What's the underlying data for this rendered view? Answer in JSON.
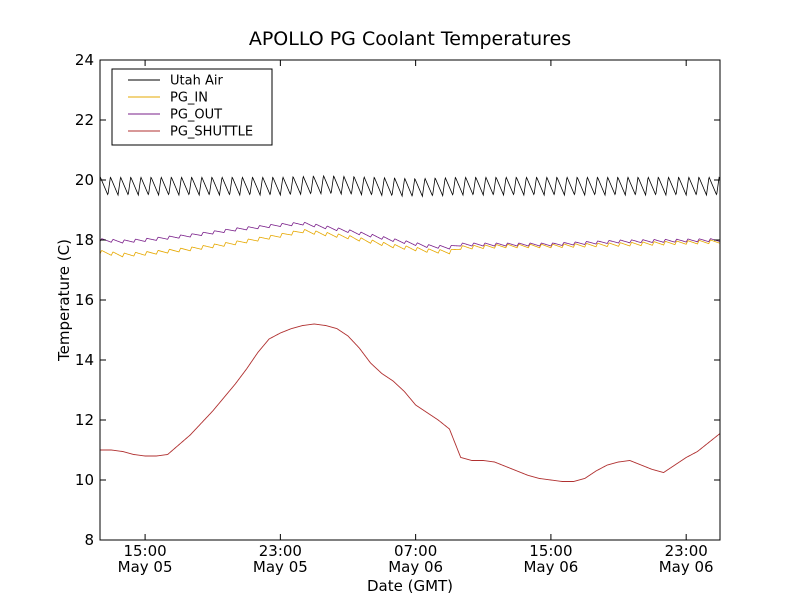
{
  "chart_data": {
    "type": "line",
    "title": "APOLLO PG Coolant Temperatures",
    "xlabel": "Date (GMT)",
    "ylabel": "Temperature (C)",
    "xlim_hours": [
      10,
      37.5
    ],
    "ylim": [
      8,
      24
    ],
    "yticks": [
      8,
      10,
      12,
      14,
      16,
      18,
      20,
      22,
      24
    ],
    "xticks": [
      {
        "hour": 12,
        "time": "15:00",
        "date": "May 05"
      },
      {
        "hour": 18,
        "time": "23:00",
        "date": "May 05"
      },
      {
        "hour": 24,
        "time": "07:00",
        "date": "May 06"
      },
      {
        "hour": 30,
        "time": "15:00",
        "date": "May 06"
      },
      {
        "hour": 36,
        "time": "23:00",
        "date": "May 06"
      }
    ],
    "legend_position": "top-left",
    "series": [
      {
        "name": "Utah Air",
        "color": "#000000",
        "style": "oscillating",
        "x": [
          10,
          14,
          18,
          20,
          22,
          24,
          26,
          30,
          34,
          37.5
        ],
        "center": [
          19.8,
          19.8,
          19.8,
          19.85,
          19.8,
          19.75,
          19.8,
          19.8,
          19.8,
          19.8
        ],
        "amplitude": 0.3,
        "period_hours": 0.45
      },
      {
        "name": "PG_IN",
        "color": "#e6a800",
        "style": "sawtooth",
        "x": [
          10,
          11,
          12,
          14,
          16,
          18,
          19,
          21,
          23,
          24.5,
          25.5,
          26,
          28,
          30,
          33,
          37.5
        ],
        "y": [
          17.6,
          17.5,
          17.55,
          17.7,
          17.9,
          18.15,
          18.3,
          18.1,
          17.8,
          17.65,
          17.6,
          17.75,
          17.8,
          17.8,
          17.85,
          17.95
        ],
        "amplitude": 0.12,
        "period_hours": 0.5
      },
      {
        "name": "PG_OUT",
        "color": "#7a1f8a",
        "style": "sawtooth",
        "x": [
          10,
          11,
          12,
          14,
          16,
          18,
          19,
          21,
          23,
          24.5,
          25.5,
          26,
          28,
          30,
          33,
          37.5
        ],
        "y": [
          18.0,
          17.95,
          18.0,
          18.15,
          18.35,
          18.5,
          18.55,
          18.3,
          18.0,
          17.8,
          17.75,
          17.85,
          17.85,
          17.85,
          17.95,
          18.0
        ],
        "amplitude": 0.1,
        "period_hours": 0.5
      },
      {
        "name": "PG_SHUTTLE",
        "color": "#b03030",
        "style": "smooth",
        "x": [
          10,
          10.5,
          11,
          11.5,
          12,
          12.5,
          13,
          14,
          15,
          16,
          16.5,
          17,
          17.5,
          18,
          18.5,
          19,
          19.5,
          20,
          20.5,
          21,
          21.5,
          22,
          22.5,
          23,
          23.5,
          24,
          24.5,
          25,
          25.5,
          26,
          26.5,
          27,
          27.5,
          28,
          28.5,
          29,
          29.5,
          30,
          30.5,
          31,
          31.5,
          32,
          32.5,
          33,
          33.5,
          34,
          34.5,
          35,
          35.5,
          36,
          36.5,
          37,
          37.5
        ],
        "y": [
          11.0,
          11.0,
          10.95,
          10.85,
          10.8,
          10.8,
          10.85,
          11.5,
          12.3,
          13.2,
          13.7,
          14.25,
          14.7,
          14.9,
          15.05,
          15.15,
          15.2,
          15.15,
          15.05,
          14.8,
          14.4,
          13.9,
          13.55,
          13.3,
          12.95,
          12.5,
          12.25,
          12.0,
          11.7,
          10.75,
          10.65,
          10.65,
          10.6,
          10.45,
          10.3,
          10.15,
          10.05,
          10.0,
          9.95,
          9.95,
          10.05,
          10.3,
          10.5,
          10.6,
          10.65,
          10.5,
          10.35,
          10.25,
          10.5,
          10.75,
          10.95,
          11.25,
          11.55
        ]
      }
    ]
  }
}
